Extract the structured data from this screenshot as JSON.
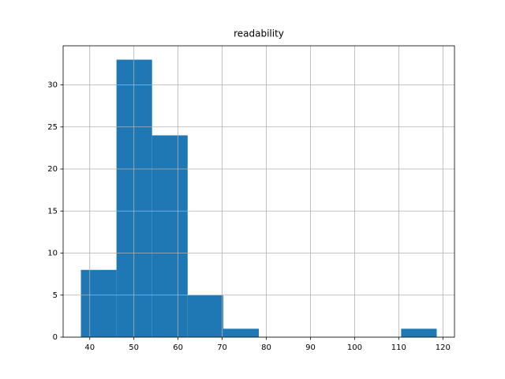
{
  "chart_data": {
    "type": "histogram",
    "title": "readability",
    "bins": [
      38,
      46.06,
      54.12,
      62.18,
      70.24,
      78.3,
      86.36,
      94.42,
      102.48,
      110.54,
      118.6
    ],
    "values": [
      8,
      33,
      24,
      5,
      1,
      0,
      0,
      0,
      0,
      1
    ],
    "color": "#1f77b4",
    "xlim": [
      33.97,
      122.63
    ],
    "xticks": [
      40,
      50,
      60,
      70,
      80,
      90,
      100,
      110,
      120
    ],
    "ylim": [
      0,
      34.65
    ],
    "yticks": [
      0,
      5,
      10,
      15,
      20,
      25,
      30
    ],
    "grid": true
  }
}
